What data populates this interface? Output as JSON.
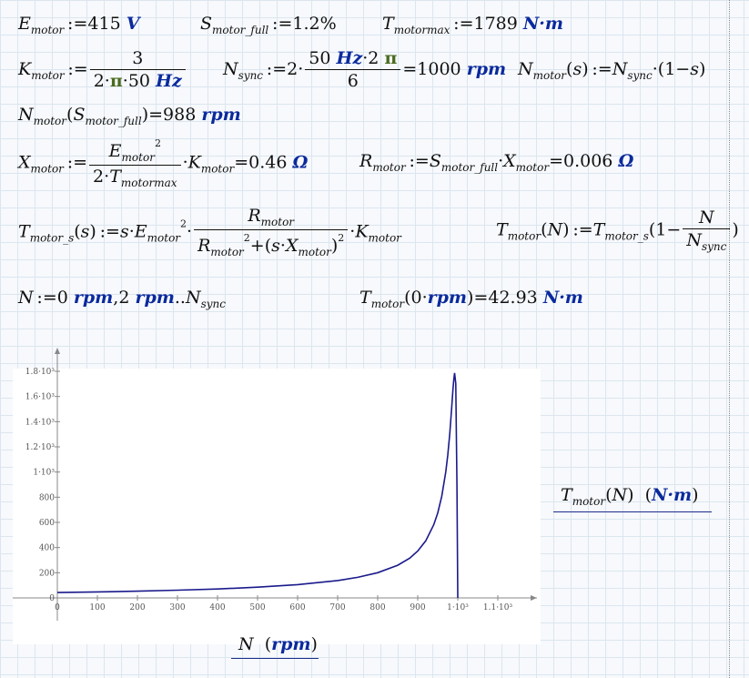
{
  "equations": {
    "e_motor_value": "415",
    "e_motor_unit": "V",
    "s_full_value": "1.2%",
    "t_max_value": "1789",
    "t_max_unit": "N·m",
    "k_num": "3",
    "k_den_prefix": "2·",
    "k_den_pi": "π",
    "k_den_suffix": "·50",
    "k_den_unit": "Hz",
    "nsync_num_prefix": "50",
    "nsync_num_unit": "Hz",
    "nsync_num_mid": "·2",
    "nsync_num_pi": "π",
    "nsync_den": "6",
    "nsync_result": "1000",
    "nsync_result_unit": "rpm",
    "nfull_result": "988",
    "nfull_result_unit": "rpm",
    "x_result": "0.46",
    "x_unit": "Ω",
    "r_result": "0.006",
    "r_unit": "Ω",
    "range_unit": "rpm",
    "t0_unit": "rpm",
    "t0_result": "42.93",
    "t0_result_unit": "N·m"
  },
  "plot": {
    "y_label": "Tmotor(N)  (N·m)",
    "y_unit": "N·m",
    "x_label": "N  (rpm)",
    "x_unit": "rpm",
    "x_ticks": [
      "0",
      "100",
      "200",
      "300",
      "400",
      "500",
      "600",
      "700",
      "800",
      "900",
      "1·10³",
      "1.1·10³"
    ],
    "y_ticks": [
      "0",
      "200",
      "400",
      "600",
      "800",
      "1·10³",
      "1.2·10³",
      "1.4·10³",
      "1.6·10³",
      "1.8·10³"
    ]
  },
  "chart_data": {
    "type": "line",
    "xlabel": "N (rpm)",
    "ylabel": "Tmotor(N) (N·m)",
    "xlim": [
      0,
      1100
    ],
    "ylim": [
      0,
      1800
    ],
    "series": [
      {
        "x": [
          0,
          100,
          200,
          300,
          400,
          500,
          600,
          700,
          750,
          800,
          850,
          880,
          900,
          920,
          940,
          950,
          960,
          970,
          975,
          980,
          985,
          988,
          990,
          992,
          995,
          998,
          1000
        ],
        "y": [
          42.93,
          47.6,
          53.6,
          61.1,
          71.2,
          85.1,
          105.5,
          138.1,
          163.3,
          200.1,
          259.7,
          315.7,
          372.3,
          453.6,
          580.9,
          675.5,
          807.2,
          1000.3,
          1133.4,
          1302.8,
          1520.2,
          1655.3,
          1731.2,
          1787.2,
          1702.8,
          895.2,
          0
        ]
      }
    ],
    "line_color": "#1a1a8c"
  }
}
